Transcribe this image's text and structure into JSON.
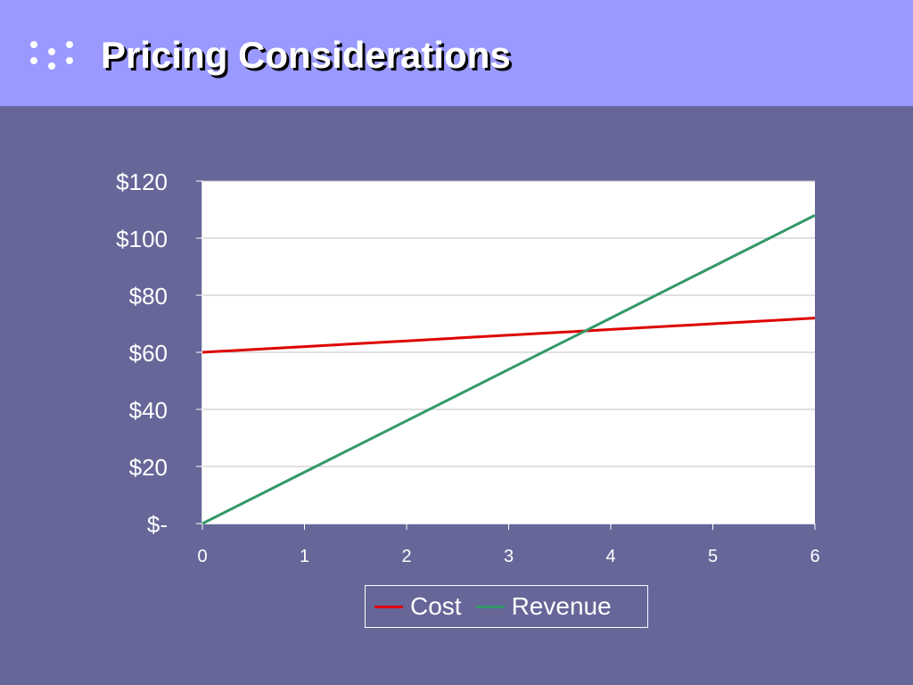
{
  "slide": {
    "title": "Pricing Considerations"
  },
  "colors": {
    "header_bg": "#9999ff",
    "slide_bg": "#666699",
    "plot_bg": "#ffffff",
    "cost": "#dd0000",
    "revenue": "#339966"
  },
  "chart_data": {
    "type": "line",
    "x": [
      0,
      1,
      2,
      3,
      4,
      5,
      6
    ],
    "x_tick_labels": [
      "0",
      "1",
      "2",
      "3",
      "4",
      "5",
      "6"
    ],
    "y_tick_values": [
      0,
      20,
      40,
      60,
      80,
      100,
      120
    ],
    "y_tick_labels": [
      "$-",
      "$20",
      "$40",
      "$60",
      "$80",
      "$100",
      "$120"
    ],
    "xlim": [
      0,
      6
    ],
    "ylim": [
      0,
      120
    ],
    "grid": true,
    "legend_position": "bottom",
    "series": [
      {
        "name": "Cost",
        "color": "#dd0000",
        "values": [
          60,
          62,
          64,
          66,
          68,
          70,
          72
        ]
      },
      {
        "name": "Revenue",
        "color": "#339966",
        "values": [
          0,
          18,
          36,
          54,
          72,
          90,
          108
        ]
      }
    ],
    "title": "",
    "xlabel": "",
    "ylabel": ""
  }
}
